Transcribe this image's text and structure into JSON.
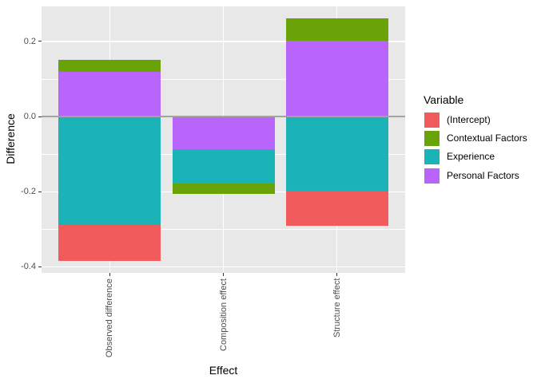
{
  "chart_data": {
    "type": "bar",
    "stacked": true,
    "title": "",
    "xlabel": "Effect",
    "ylabel": "Difference",
    "legend_title": "Variable",
    "legend_position": "right",
    "categories": [
      "Observed difference",
      "Composition effect",
      "Structure effect"
    ],
    "series": [
      {
        "name": "(Intercept)",
        "color": "#F15B5B",
        "values": [
          -0.096,
          0,
          -0.093
        ]
      },
      {
        "name": "Contextual Factors",
        "color": "#69A308",
        "values": [
          0.032,
          -0.026,
          0.06
        ]
      },
      {
        "name": "Experience",
        "color": "#1AB3B8",
        "values": [
          -0.289,
          -0.091,
          -0.198
        ]
      },
      {
        "name": "Personal Factors",
        "color": "#B964FA",
        "values": [
          0.118,
          -0.088,
          0.202
        ]
      }
    ],
    "stack_note": "segments stack away from zero in reverse series order (Personal Factors nearest zero on top side for positives; negatives stack downward in same reversed order)",
    "ylim": [
      -0.416,
      0.293
    ],
    "y_major_ticks": [
      {
        "value": 0.2,
        "label": "0.2"
      },
      {
        "value": 0.0,
        "label": "0.0"
      },
      {
        "value": -0.2,
        "label": "-0.2"
      },
      {
        "value": -0.4,
        "label": "-0.4"
      }
    ],
    "y_minor_ticks": [
      0.1,
      -0.1,
      -0.3
    ],
    "x_tick_label_rotation": 90,
    "grid": true,
    "zero_line": true,
    "colors": {
      "panel_bg": "#E8E8E8",
      "grid": "#FFFFFF",
      "zero_line": "#A3A3A3",
      "tick_mark": "#333333",
      "axis_text": "#4D4D4D",
      "axis_title": "#000000"
    }
  }
}
